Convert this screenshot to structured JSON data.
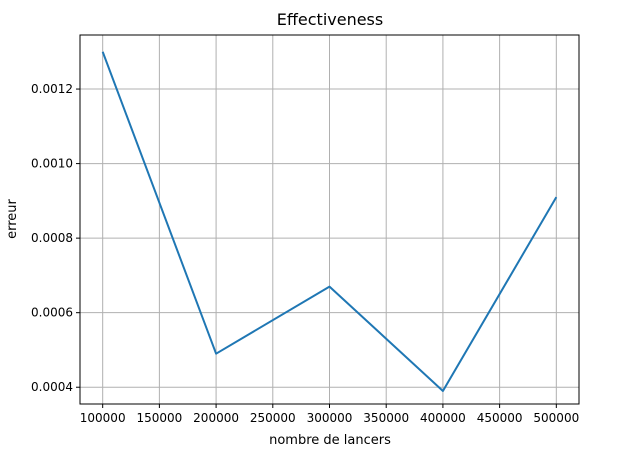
{
  "chart_data": {
    "type": "line",
    "title": "Effectiveness",
    "xlabel": "nombre de lancers",
    "ylabel": "erreur",
    "x": [
      100000,
      200000,
      300000,
      400000,
      500000
    ],
    "series": [
      {
        "values": [
          0.0013,
          0.00049,
          0.00067,
          0.00039,
          0.00091
        ]
      }
    ],
    "xlim": [
      80000,
      520000
    ],
    "ylim": [
      0.000355,
      0.001345
    ],
    "xticks": [
      "100000",
      "150000",
      "200000",
      "250000",
      "300000",
      "350000",
      "400000",
      "450000",
      "500000"
    ],
    "yticks": [
      "0.0004",
      "0.0006",
      "0.0008",
      "0.0010",
      "0.0012"
    ],
    "grid": true,
    "line_color": "#1f77b4",
    "grid_color": "#b0b0b0"
  }
}
